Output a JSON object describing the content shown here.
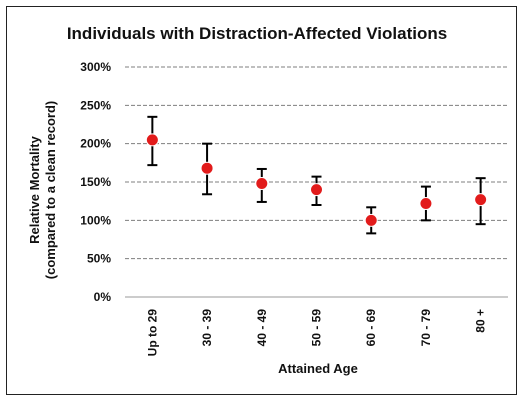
{
  "chart_data": {
    "type": "scatter",
    "title": "Individuals with Distraction-Affected Violations",
    "xlabel": "Attained Age",
    "ylabel_line1": "Relative Mortality",
    "ylabel_line2": "(compared to a clean record)",
    "categories": [
      "Up to 29",
      "30 - 39",
      "40 - 49",
      "50 - 59",
      "60 - 69",
      "70 - 79",
      "80 +"
    ],
    "values": [
      205,
      168,
      148,
      140,
      100,
      122,
      127
    ],
    "error_low": [
      172,
      134,
      124,
      120,
      83,
      100,
      95
    ],
    "error_high": [
      235,
      200,
      167,
      157,
      117,
      144,
      155
    ],
    "ylim": [
      0,
      300
    ],
    "yticks": [
      0,
      50,
      100,
      150,
      200,
      250,
      300
    ],
    "ytick_labels": [
      "0%",
      "50%",
      "100%",
      "150%",
      "200%",
      "250%",
      "300%"
    ],
    "grid": true,
    "marker_color": "#e21b1b",
    "errorbar_color": "#000000",
    "grid_color": "#7f7f7f"
  }
}
